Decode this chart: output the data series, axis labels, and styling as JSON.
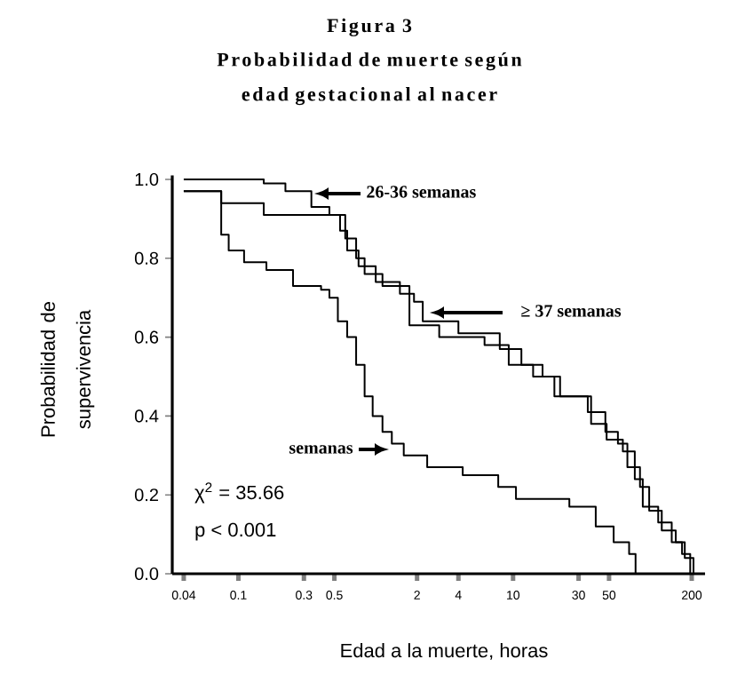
{
  "chart_data": {
    "type": "step",
    "title": "Figura 3",
    "subtitle": "Probabilidad de muerte según edad gestacional al nacer",
    "xlabel": "Edad a la muerte, horas",
    "ylabel": "Probabilidad de supervivencia",
    "log": "x",
    "xlim": [
      0.033,
      250
    ],
    "ylim": [
      0,
      1.01
    ],
    "xticks": [
      0.04,
      0.1,
      0.3,
      0.5,
      2,
      4,
      10,
      30,
      50,
      200
    ],
    "yticks": [
      {
        "value": 0,
        "label": "0.0"
      },
      0.2,
      0.4,
      0.6,
      0.8,
      {
        "value": 1,
        "label": "1.0"
      }
    ],
    "legend": "top right",
    "grid": false,
    "annotations": [
      "χ$^{2}$ = 35.66",
      "p < 0.001"
    ],
    "series": [
      {
        "name": "26-36 semanas",
        "color": "#000000",
        "x": [
          0.04,
          0.153,
          0.22,
          0.34,
          0.46,
          0.6,
          0.72,
          0.83,
          1.12,
          1.76,
          2.9,
          6.2,
          9.3,
          14,
          20,
          37,
          48,
          63,
          77,
          88,
          114,
          143,
          170,
          195
        ],
        "values": [
          1.0,
          0.99,
          0.97,
          0.93,
          0.91,
          0.85,
          0.8,
          0.76,
          0.73,
          0.63,
          0.6,
          0.58,
          0.53,
          0.5,
          0.45,
          0.38,
          0.34,
          0.31,
          0.24,
          0.17,
          0.13,
          0.08,
          0.05,
          0.0
        ]
      },
      {
        "name": "≥ 37 semanas",
        "color": "#000000",
        "x": [
          0.04,
          0.075,
          0.153,
          0.55,
          0.62,
          0.75,
          1.0,
          1.5,
          1.9,
          2.2,
          4.0,
          8,
          11.5,
          16.4,
          22,
          35,
          47,
          58,
          68,
          84,
          98,
          121,
          153,
          178,
          206
        ],
        "values": [
          0.97,
          0.94,
          0.91,
          0.87,
          0.82,
          0.78,
          0.74,
          0.71,
          0.69,
          0.64,
          0.61,
          0.57,
          0.53,
          0.5,
          0.45,
          0.41,
          0.36,
          0.33,
          0.27,
          0.22,
          0.16,
          0.11,
          0.08,
          0.04,
          0.0
        ]
      },
      {
        "name": "semanas",
        "color": "#000000",
        "x": [
          0.04,
          0.075,
          0.085,
          0.11,
          0.16,
          0.25,
          0.4,
          0.46,
          0.53,
          0.62,
          0.72,
          0.83,
          0.95,
          1.12,
          1.31,
          1.6,
          2.37,
          4.3,
          7.8,
          10.5,
          25.7,
          40,
          54,
          70,
          78
        ],
        "values": [
          0.97,
          0.86,
          0.82,
          0.79,
          0.77,
          0.73,
          0.72,
          0.7,
          0.64,
          0.6,
          0.53,
          0.45,
          0.4,
          0.36,
          0.33,
          0.3,
          0.27,
          0.25,
          0.22,
          0.19,
          0.17,
          0.12,
          0.08,
          0.05,
          0.0
        ]
      }
    ]
  }
}
